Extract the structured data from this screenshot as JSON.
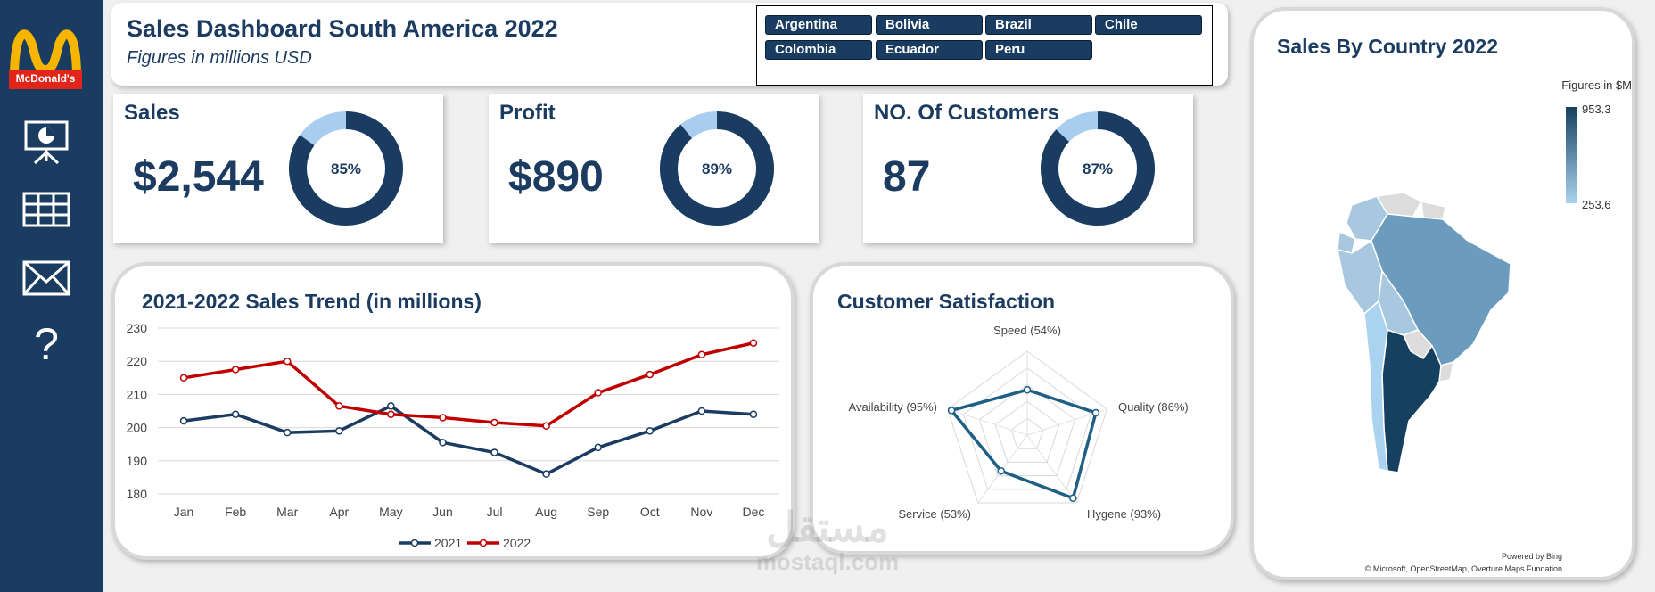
{
  "sidebar": {
    "logo_text": "McDonald's",
    "items": [
      {
        "icon": "presentation-icon"
      },
      {
        "icon": "table-icon"
      },
      {
        "icon": "mail-icon"
      },
      {
        "icon": "help-icon",
        "glyph": "?"
      }
    ]
  },
  "header": {
    "title": "Sales Dashboard South America 2022",
    "subtitle": "Figures in millions USD"
  },
  "slicer": {
    "countries": [
      "Argentina",
      "Bolivia",
      "Brazil",
      "Chile",
      "Colombia",
      "Ecuador",
      "Peru"
    ]
  },
  "kpis": {
    "sales": {
      "label": "Sales",
      "value": "$2,544",
      "percent": 85,
      "percent_label": "85%"
    },
    "profit": {
      "label": "Profit",
      "value": "$890",
      "percent": 89,
      "percent_label": "89%"
    },
    "customers": {
      "label": "NO. Of Customers",
      "value": "87",
      "percent": 87,
      "percent_label": "87%"
    }
  },
  "colors": {
    "navy": "#193c60",
    "light_blue": "#a9cdee",
    "series_2021": "#1b3b61",
    "series_2022": "#c00000"
  },
  "chart_data": [
    {
      "type": "line",
      "title": "2021-2022 Sales Trend (in millions)",
      "categories": [
        "Jan",
        "Feb",
        "Mar",
        "Apr",
        "May",
        "Jun",
        "Jul",
        "Aug",
        "Sep",
        "Oct",
        "Nov",
        "Dec"
      ],
      "series": [
        {
          "name": "2021",
          "values": [
            202,
            204,
            198.5,
            199,
            206.5,
            195.5,
            192.5,
            186,
            194,
            199,
            205,
            204
          ]
        },
        {
          "name": "2022",
          "values": [
            215,
            217.5,
            220,
            206.5,
            204,
            203,
            201.5,
            200.5,
            210.5,
            216,
            222,
            225.5
          ]
        }
      ],
      "yticks": [
        180,
        190,
        200,
        210,
        220,
        230
      ],
      "ylim": [
        180,
        230
      ],
      "legend": "bottom",
      "grid": true
    },
    {
      "type": "radar",
      "title": "Customer Satisfaction",
      "categories": [
        "Speed (54%)",
        "Quality (86%)",
        "Hygene (93%)",
        "Service (53%)",
        "Availability (95%)"
      ],
      "values": [
        54,
        86,
        93,
        53,
        95
      ],
      "rlim": [
        0,
        100
      ]
    }
  ],
  "map": {
    "title": "Sales By Country 2022",
    "legend_title": "Figures in $M",
    "legend_max": "953.3",
    "legend_min": "253.6",
    "credit_1": "Powered by Bing",
    "credit_2": "© Microsoft, OpenStreetMap, Overture Maps Fundation"
  },
  "watermark": {
    "arabic": "مستقل",
    "latin": "mostaql.com"
  }
}
